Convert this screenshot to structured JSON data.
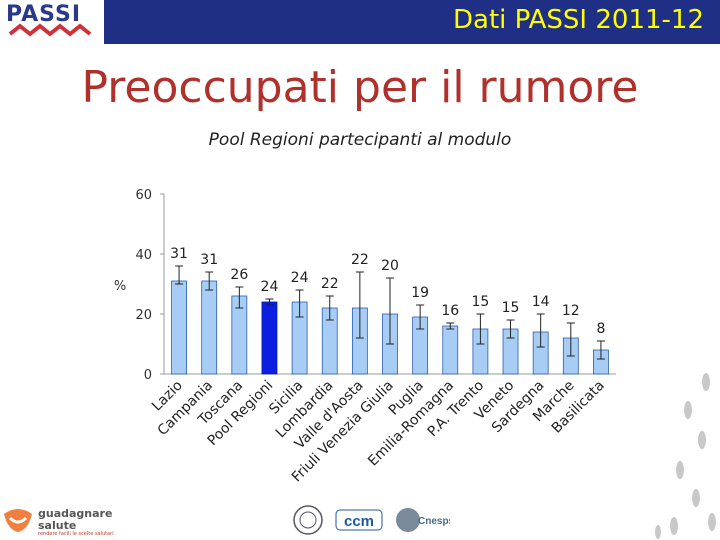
{
  "header": {
    "logo_text": "PASSI",
    "title": "Dati PASSI 2011-12"
  },
  "page_title": "Preoccupati per il rumore",
  "subtitle": "Pool Regioni partecipanti al modulo",
  "footer": {
    "guadagnare_line1": "guadagnare",
    "guadagnare_line2": "salute",
    "guadagnare_sub": "rendere facili le scelte salutari",
    "logo_ccm": "ccm",
    "logo_cnesps": "Cnesps"
  },
  "colors": {
    "header_bar": "#1f2f85",
    "header_title": "#ffff00",
    "page_title": "#b0302c",
    "bar_default": "#a8cdf5",
    "bar_highlight": "#0a1fe0"
  },
  "chart_data": {
    "type": "bar",
    "title": "",
    "xlabel": "",
    "ylabel": "%",
    "ylim": [
      0,
      60
    ],
    "yticks": [
      0,
      20,
      40,
      60
    ],
    "grid": false,
    "categories": [
      "Lazio",
      "Campania",
      "Toscana",
      "Pool Regioni",
      "Sicilia",
      "Lombardia",
      "Valle d'Aosta",
      "Friuli Venezia Giulia",
      "Puglia",
      "Emilia-Romagna",
      "P.A. Trento",
      "Veneto",
      "Sardegna",
      "Marche",
      "Basilicata"
    ],
    "values": [
      31,
      31,
      26,
      24,
      24,
      22,
      22,
      20,
      19,
      16,
      15,
      15,
      14,
      12,
      8
    ],
    "value_labels": [
      "31",
      "31",
      "26",
      "24",
      "24",
      "22",
      "22",
      "20",
      "19",
      "16",
      "15",
      "15",
      "14",
      "12",
      "8"
    ],
    "error_low": [
      30,
      28,
      22,
      23,
      19,
      18,
      12,
      10,
      15,
      15,
      10,
      12,
      9,
      6,
      5
    ],
    "error_high": [
      36,
      34,
      29,
      25,
      28,
      26,
      34,
      32,
      23,
      17,
      20,
      18,
      20,
      17,
      11
    ],
    "highlight_index": 3
  }
}
